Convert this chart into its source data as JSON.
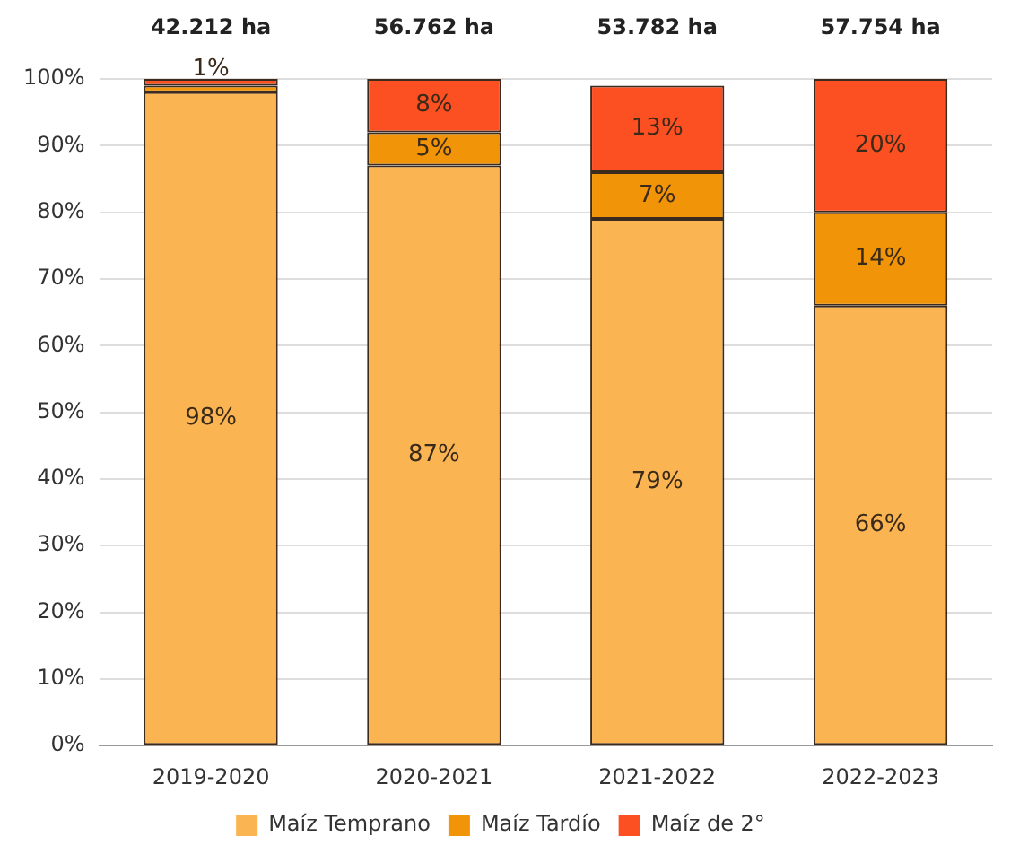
{
  "chart_data": {
    "type": "bar",
    "stacked": true,
    "categories": [
      "2019-2020",
      "2020-2021",
      "2021-2022",
      "2022-2023"
    ],
    "series": [
      {
        "name": "Maíz Temprano",
        "color": "#fbb452",
        "values": [
          98,
          87,
          79,
          66
        ],
        "value_labels": [
          "98%",
          "87%",
          "79%",
          "66%"
        ]
      },
      {
        "name": "Maíz Tardío",
        "color": "#f29408",
        "values": [
          1,
          5,
          7,
          14
        ],
        "value_labels": [
          "1%",
          "5%",
          "7%",
          "14%"
        ]
      },
      {
        "name": "Maíz de 2°",
        "color": "#fd5022",
        "values": [
          1,
          8,
          13,
          20
        ],
        "value_labels": [
          null,
          "8%",
          "13%",
          "20%"
        ]
      }
    ],
    "annotations": [
      {
        "text": "42.212 ha",
        "x": "2019-2020",
        "y": 100
      },
      {
        "text": "56.762 ha",
        "x": "2020-2021",
        "y": 100
      },
      {
        "text": "53.782 ha",
        "x": "2021-2022",
        "y": 100
      },
      {
        "text": "57.754 ha",
        "x": "2022-2023",
        "y": 100
      }
    ],
    "ylim": [
      0,
      100
    ],
    "yticks": [
      {
        "value": 0,
        "label": "0%"
      },
      {
        "value": 10,
        "label": "10%"
      },
      {
        "value": 20,
        "label": "20%"
      },
      {
        "value": 30,
        "label": "30%"
      },
      {
        "value": 40,
        "label": "40%"
      },
      {
        "value": 50,
        "label": "50%"
      },
      {
        "value": 60,
        "label": "60%"
      },
      {
        "value": 70,
        "label": "70%"
      },
      {
        "value": 80,
        "label": "80%"
      },
      {
        "value": 90,
        "label": "90%"
      },
      {
        "value": 100,
        "label": "100%"
      }
    ],
    "grid": "y",
    "legend": "bottom"
  }
}
